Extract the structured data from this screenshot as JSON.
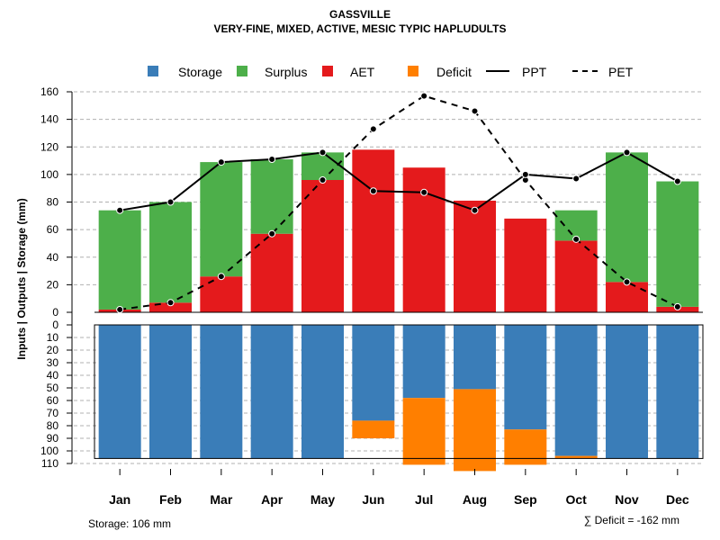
{
  "chart_data": {
    "type": "bar",
    "title": "GASSVILLE",
    "subtitle": "VERY-FINE, MIXED, ACTIVE, MESIC TYPIC HAPLUDULTS",
    "ylabel": "Inputs | Outputs | Storage    (mm)",
    "categories": [
      "Jan",
      "Feb",
      "Mar",
      "Apr",
      "May",
      "Jun",
      "Jul",
      "Aug",
      "Sep",
      "Oct",
      "Nov",
      "Dec"
    ],
    "ylim_top": [
      0,
      160
    ],
    "ylim_bottom": [
      0,
      110
    ],
    "yticks_top": [
      "0",
      "20",
      "40",
      "60",
      "80",
      "100",
      "120",
      "140",
      "160"
    ],
    "yticks_bottom": [
      "0",
      "10",
      "20",
      "30",
      "40",
      "50",
      "60",
      "70",
      "80",
      "90",
      "100",
      "110"
    ],
    "legend": {
      "storage": "Storage",
      "surplus": "Surplus",
      "aet": "AET",
      "deficit": "Deficit",
      "ppt": "PPT",
      "pet": "PET"
    },
    "colors": {
      "storage": "#3a7db8",
      "surplus": "#4daf4a",
      "aet": "#e41a1c",
      "deficit": "#ff7f00",
      "grid": "#b0b0b0"
    },
    "series": [
      {
        "name": "AET",
        "values": [
          2,
          7,
          26,
          57,
          96,
          118,
          105,
          81,
          68,
          52,
          22,
          4
        ]
      },
      {
        "name": "Surplus",
        "values": [
          72,
          73,
          83,
          54,
          20,
          0,
          0,
          0,
          0,
          22,
          94,
          91
        ]
      },
      {
        "name": "PPT",
        "values": [
          74,
          80,
          109,
          111,
          116,
          88,
          87,
          74,
          100,
          97,
          116,
          95
        ]
      },
      {
        "name": "PET",
        "values": [
          2,
          7,
          26,
          57,
          96,
          133,
          157,
          146,
          96,
          53,
          22,
          4
        ]
      },
      {
        "name": "Storage",
        "values": [
          106,
          106,
          106,
          106,
          106,
          76,
          58,
          51,
          83,
          104,
          106,
          106
        ]
      },
      {
        "name": "Deficit",
        "values": [
          0,
          0,
          0,
          0,
          0,
          14,
          53,
          65,
          28,
          2,
          0,
          0
        ]
      }
    ],
    "storage_capacity": 106
  },
  "footer": {
    "storage_label": "Storage: 106 mm",
    "deficit_label": "∑ Deficit = -162 mm"
  }
}
